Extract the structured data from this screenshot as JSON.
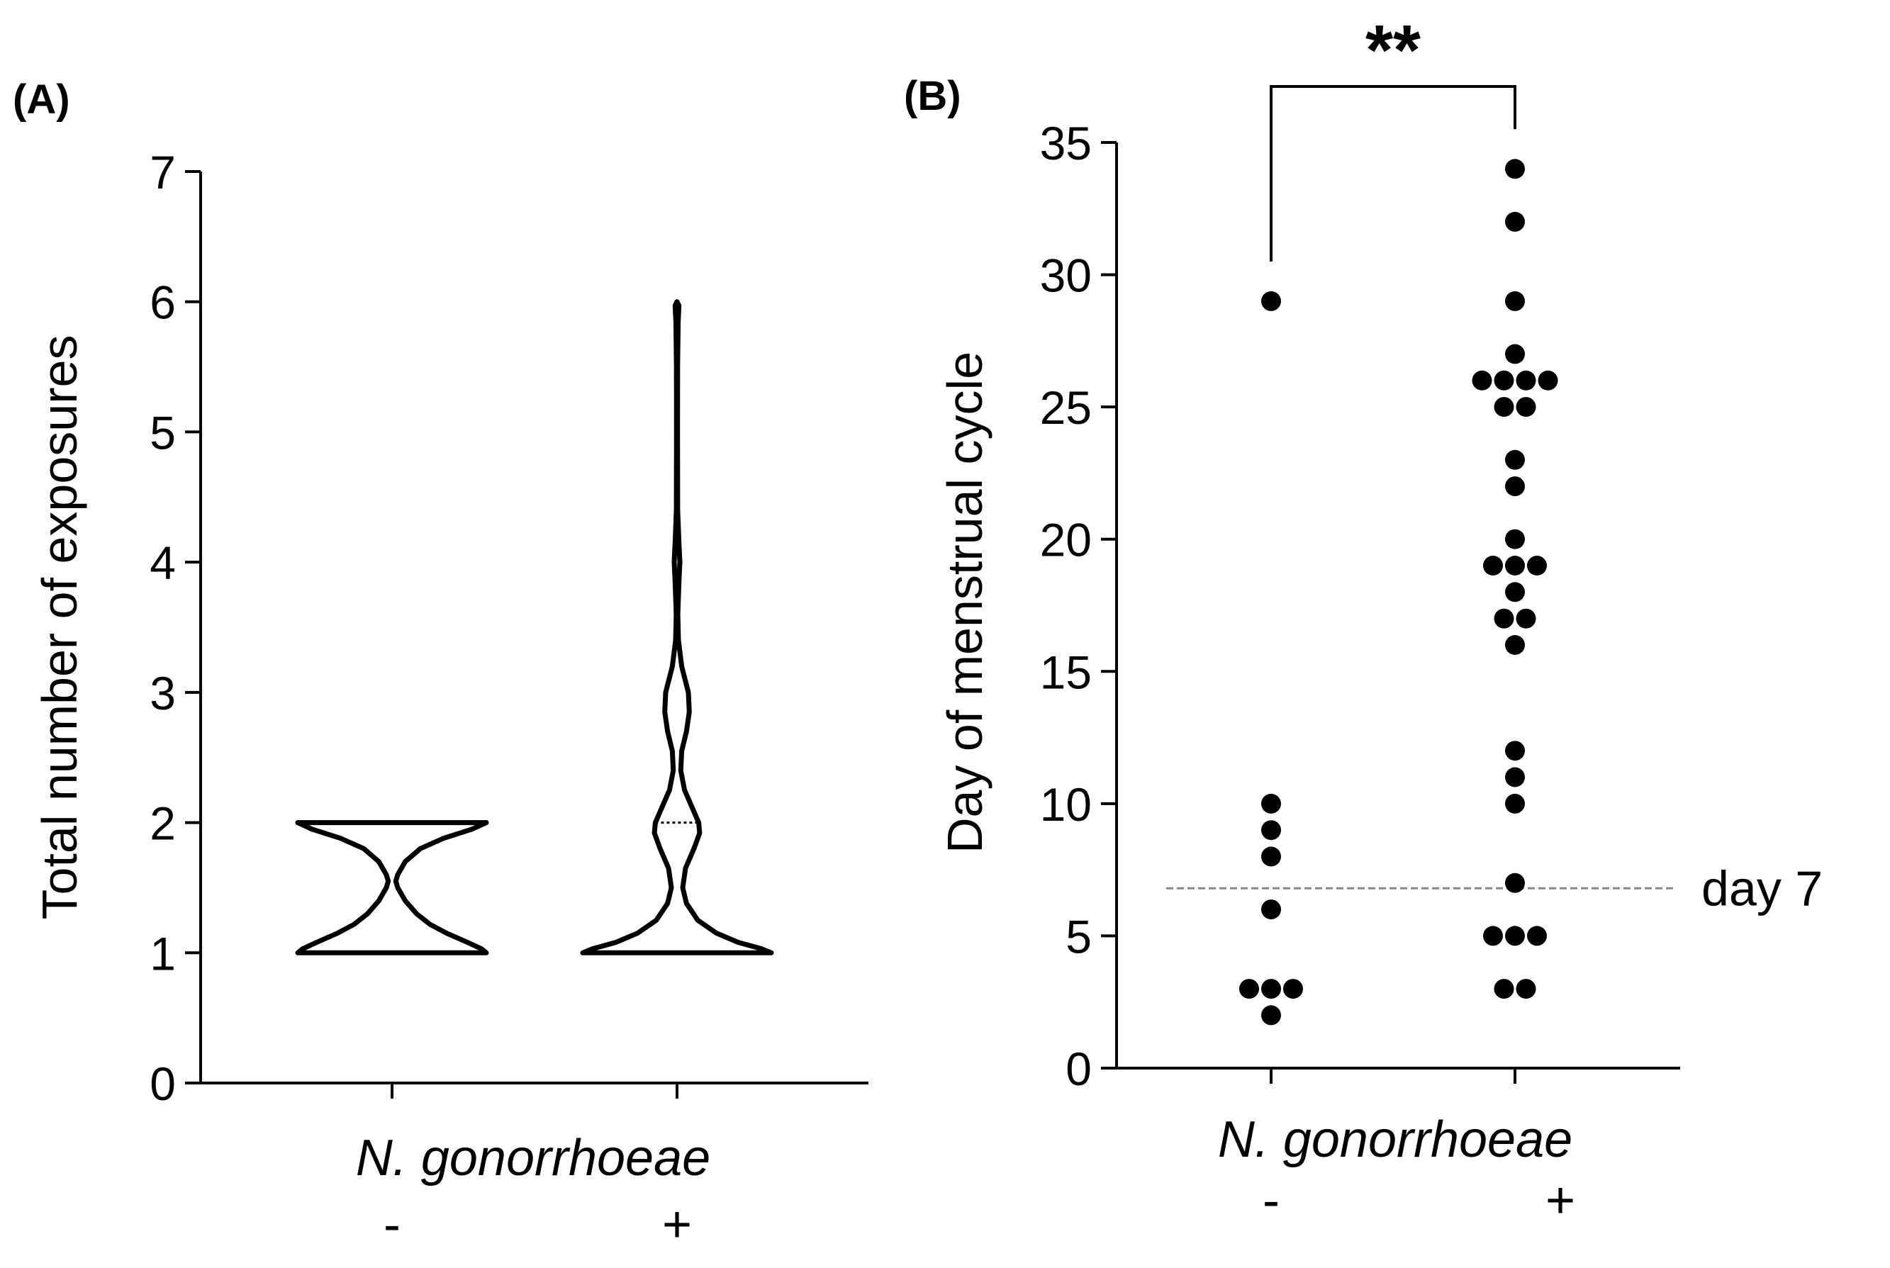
{
  "figure": {
    "colors": {
      "ink": "#000000",
      "reference_line": "#888888",
      "background": "#ffffff"
    }
  },
  "chart_data": [
    {
      "panel_label": "(A)",
      "type": "violin",
      "ylabel": "Total number of exposures",
      "xlabel": "N. gonorrhoeae",
      "ylim": [
        0,
        7
      ],
      "yticks": [
        0,
        1,
        2,
        3,
        4,
        5,
        6,
        7
      ],
      "ytick_labels": [
        "0",
        "1",
        "2",
        "3",
        "4",
        "5",
        "6",
        "7"
      ],
      "categories": [
        "-",
        "+"
      ],
      "violins": [
        {
          "category": "-",
          "profile": [
            [
              1.0,
              1.0
            ],
            [
              1.03,
              0.95
            ],
            [
              1.08,
              0.8
            ],
            [
              1.15,
              0.58
            ],
            [
              1.22,
              0.4
            ],
            [
              1.3,
              0.26
            ],
            [
              1.4,
              0.14
            ],
            [
              1.5,
              0.06
            ],
            [
              1.55,
              0.04
            ],
            [
              1.6,
              0.06
            ],
            [
              1.7,
              0.14
            ],
            [
              1.8,
              0.3
            ],
            [
              1.88,
              0.55
            ],
            [
              1.95,
              0.85
            ],
            [
              2.0,
              1.0
            ]
          ]
        },
        {
          "category": "+",
          "median": 2,
          "profile": [
            [
              1.0,
              1.0
            ],
            [
              1.03,
              0.9
            ],
            [
              1.08,
              0.65
            ],
            [
              1.15,
              0.42
            ],
            [
              1.25,
              0.22
            ],
            [
              1.38,
              0.1
            ],
            [
              1.5,
              0.06
            ],
            [
              1.65,
              0.09
            ],
            [
              1.8,
              0.18
            ],
            [
              1.92,
              0.24
            ],
            [
              2.0,
              0.23
            ],
            [
              2.1,
              0.17
            ],
            [
              2.25,
              0.08
            ],
            [
              2.4,
              0.04
            ],
            [
              2.55,
              0.05
            ],
            [
              2.7,
              0.1
            ],
            [
              2.85,
              0.13
            ],
            [
              3.0,
              0.12
            ],
            [
              3.2,
              0.05
            ],
            [
              3.4,
              0.015
            ],
            [
              3.6,
              0.008
            ],
            [
              3.85,
              0.02
            ],
            [
              4.0,
              0.03
            ],
            [
              4.15,
              0.02
            ],
            [
              4.4,
              0.007
            ],
            [
              5.0,
              0.005
            ],
            [
              5.5,
              0.006
            ],
            [
              5.85,
              0.012
            ],
            [
              5.97,
              0.02
            ],
            [
              6.0,
              0.0
            ]
          ]
        }
      ]
    },
    {
      "panel_label": "(B)",
      "type": "scatter",
      "ylabel": "Day of menstrual cycle",
      "xlabel": "N. gonorrhoeae",
      "ylim": [
        0,
        35
      ],
      "yticks": [
        0,
        5,
        10,
        15,
        20,
        25,
        30,
        35
      ],
      "ytick_labels": [
        "0",
        "5",
        "10",
        "15",
        "20",
        "25",
        "30",
        "35"
      ],
      "categories": [
        "-",
        "+"
      ],
      "series": [
        {
          "category": "-",
          "values": [
            29,
            10,
            9,
            8,
            6,
            3,
            3,
            3,
            2
          ]
        },
        {
          "category": "+",
          "values": [
            34,
            32,
            29,
            27,
            26,
            26,
            26,
            26,
            25,
            25,
            23,
            22,
            20,
            19,
            19,
            19,
            18,
            17,
            17,
            16,
            12,
            11,
            10,
            7,
            5,
            5,
            5,
            3,
            3
          ]
        }
      ],
      "reference_line": {
        "value": 6.8,
        "label": "day 7"
      },
      "significance": {
        "label": "**",
        "between": [
          "-",
          "+"
        ]
      }
    }
  ]
}
